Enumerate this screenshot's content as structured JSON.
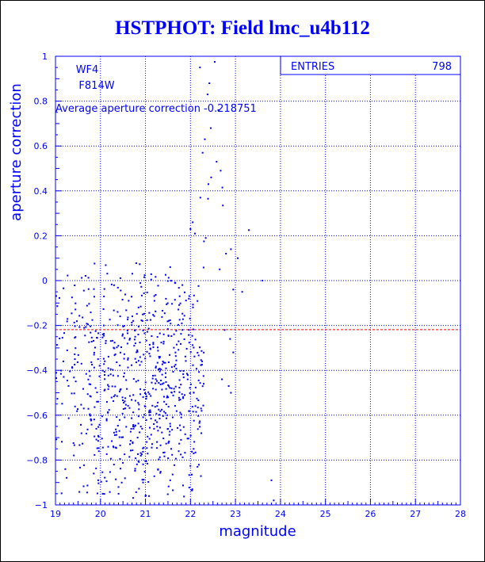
{
  "title": "HSTPHOT: Field lmc_u4b112",
  "colors": {
    "primary": "#0000ff",
    "average_line": "#ff0000",
    "background": "#ffffff"
  },
  "chart_data": {
    "type": "scatter",
    "title": "HSTPHOT: Field lmc_u4b112",
    "xlabel": "magnitude",
    "ylabel": "aperture correction",
    "xlim": [
      19,
      28
    ],
    "ylim": [
      -1,
      1
    ],
    "x_ticks": [
      19,
      20,
      21,
      22,
      23,
      24,
      25,
      26,
      27,
      28
    ],
    "y_ticks": [
      -1,
      -0.8,
      -0.6,
      -0.4,
      -0.2,
      0,
      0.2,
      0.4,
      0.6,
      0.8,
      1
    ],
    "grid": true,
    "labels": [
      "WF4",
      "F814W"
    ],
    "annotation": "Average aperture correction -0.218751",
    "average_value": -0.218751,
    "stats": {
      "entries_label": "ENTRIES",
      "entries_value": "798",
      "placement": "top-right"
    },
    "points": [
      [
        22.54,
        0.975
      ],
      [
        22.21,
        0.95
      ],
      [
        22.42,
        0.88
      ],
      [
        22.38,
        0.83
      ],
      [
        22.62,
        0.76
      ],
      [
        22.45,
        0.68
      ],
      [
        22.32,
        0.63
      ],
      [
        22.27,
        0.57
      ],
      [
        22.58,
        0.53
      ],
      [
        22.67,
        0.49
      ],
      [
        22.46,
        0.46
      ],
      [
        22.4,
        0.43
      ],
      [
        22.71,
        0.415
      ],
      [
        22.22,
        0.37
      ],
      [
        22.39,
        0.365
      ],
      [
        22.72,
        0.335
      ],
      [
        22.05,
        0.26
      ],
      [
        22.0,
        0.23
      ],
      [
        23.3,
        0.225
      ],
      [
        22.1,
        0.21
      ],
      [
        22.34,
        0.19
      ],
      [
        22.3,
        0.175
      ],
      [
        22.9,
        0.14
      ],
      [
        22.79,
        0.12
      ],
      [
        23.05,
        0.1
      ],
      [
        21.55,
        0.06
      ],
      [
        22.65,
        0.05
      ],
      [
        23.6,
        0.0
      ],
      [
        22.95,
        -0.04
      ],
      [
        23.15,
        -0.05
      ],
      [
        21.2,
        -0.09
      ],
      [
        22.76,
        -0.22
      ],
      [
        22.88,
        -0.26
      ],
      [
        22.95,
        -0.32
      ],
      [
        22.7,
        -0.44
      ],
      [
        22.85,
        -0.47
      ],
      [
        22.9,
        -0.5
      ],
      [
        23.8,
        -0.89
      ],
      [
        23.85,
        -0.98
      ],
      [
        19.85,
        -0.86
      ],
      [
        19.95,
        -0.89
      ],
      [
        20.3,
        -0.82
      ],
      [
        20.4,
        -0.92
      ],
      [
        21.55,
        -0.89
      ],
      [
        22.07,
        -0.75
      ],
      [
        20.05,
        -0.95
      ]
    ],
    "point_cloud": {
      "x_range": [
        19,
        22.3
      ],
      "y_range": [
        -0.98,
        0.08
      ],
      "center": [
        21.0,
        -0.45
      ],
      "total_entries": 798
    }
  }
}
